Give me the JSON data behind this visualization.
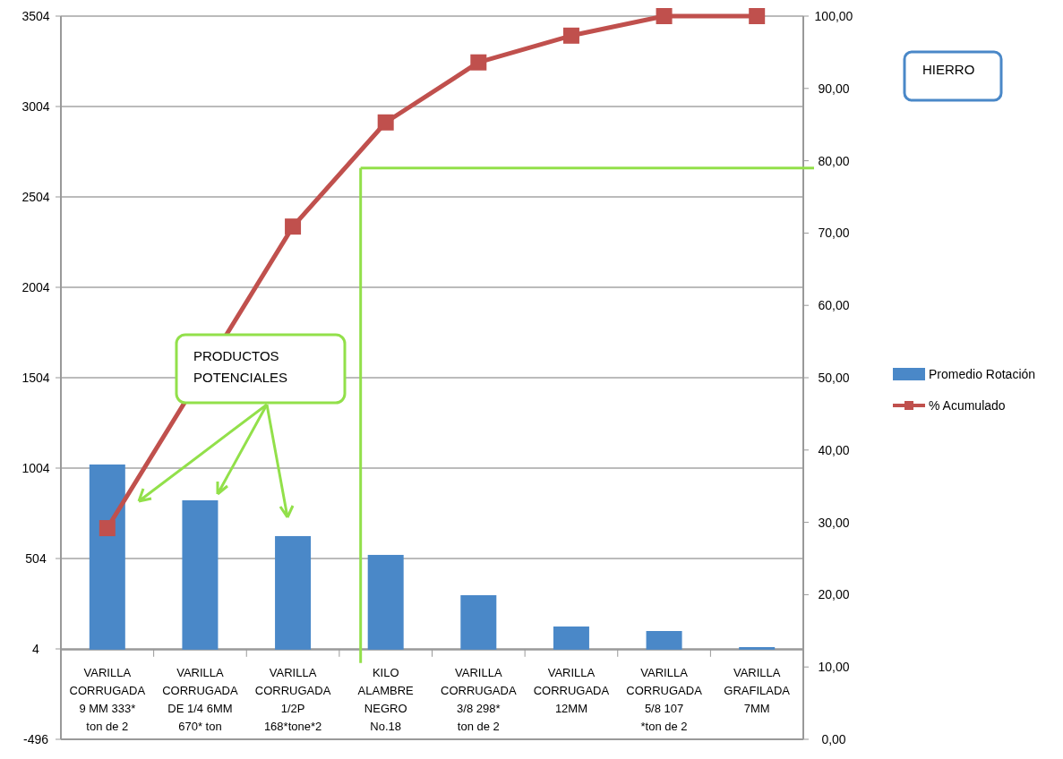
{
  "chart_data": {
    "type": "bar",
    "categories": [
      "VARILLA CORRUGADA 9 MM 333* ton de 2",
      "VARILLA CORRUGADA DE 1/4 6MM 670* ton",
      "VARILLA CORRUGADA 1/2P 168*tone*2",
      "KILO ALAMBRE NEGRO No.18",
      "VARILLA CORRUGADA 3/8 298* ton de 2",
      "VARILLA CORRUGADA 12MM",
      "VARILLA CORRUGADA 5/8 107 *ton de 2",
      "VARILLA GRAFILADA 7MM"
    ],
    "series": [
      {
        "name": "Promedio Rotación",
        "color": "#4a88c8",
        "values": [
          1024,
          826,
          628,
          524,
          301,
          128,
          103,
          14
        ]
      },
      {
        "name": "% Acumulado",
        "type": "line",
        "axis": "y2",
        "color": "#c0504d",
        "marker": "square",
        "values": [
          29.2,
          null,
          70.9,
          85.3,
          93.6,
          97.3,
          100,
          100
        ]
      }
    ],
    "ylim": [
      -496,
      3504
    ],
    "yticks": [
      -496,
      4,
      504,
      1004,
      1504,
      2004,
      2504,
      3004,
      3504
    ],
    "y2lim": [
      0,
      100
    ],
    "y2ticks": [
      {
        "value": 0,
        "label": "0,00"
      },
      {
        "value": 10,
        "label": "10,00"
      },
      {
        "value": 20,
        "label": "20,00"
      },
      {
        "value": 30,
        "label": "30,00"
      },
      {
        "value": 40,
        "label": "40,00"
      },
      {
        "value": 50,
        "label": "50,00"
      },
      {
        "value": 60,
        "label": "60,00"
      },
      {
        "value": 70,
        "label": "70,00"
      },
      {
        "value": 80,
        "label": "80,00"
      },
      {
        "value": 90,
        "label": "90,00"
      },
      {
        "value": 100,
        "label": "100,00"
      }
    ],
    "grid": "y",
    "legend": "right",
    "ref_lines": [
      {
        "axis": "y2",
        "value": 79,
        "color": "#92e04a"
      },
      {
        "axis": "x",
        "value": "KILO ALAMBRE NEGRO No.18",
        "color": "#92e04a"
      }
    ],
    "annotations": [
      "PRODUCTOS POTENCIALES",
      "HIERRO"
    ]
  }
}
